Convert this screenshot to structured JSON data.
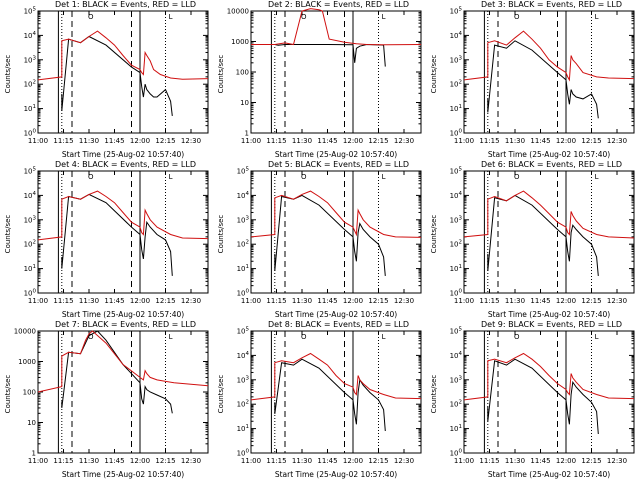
{
  "chart_data": [
    {
      "type": "line",
      "title": "Det 1: BLACK = Events, RED = LLD",
      "xlabel": "Start Time (25-Aug-02 10:57:40)",
      "ylabel": "Counts/sec",
      "x_ticks": [
        "11:00",
        "11:15",
        "11:30",
        "11:45",
        "12:00",
        "12:15",
        "12:30"
      ],
      "x_range_min": [
        0,
        100
      ],
      "y_scale": "log",
      "ylim": [
        1,
        100000
      ],
      "y_ticks": [
        "10^0",
        "10^1",
        "10^2",
        "10^3",
        "10^4",
        "10^5"
      ],
      "series": [
        {
          "name": "Events",
          "color": "#000000",
          "x": [
            14,
            14,
            18,
            25,
            30,
            40,
            55,
            60,
            61,
            62,
            63,
            64,
            66,
            68,
            70,
            75,
            78,
            79
          ],
          "y": [
            40,
            8,
            7000,
            5000,
            9000,
            4000,
            500,
            300,
            80,
            30,
            100,
            60,
            40,
            30,
            30,
            60,
            20,
            5
          ]
        },
        {
          "name": "LLD",
          "color": "#d01010",
          "x": [
            0,
            14,
            14,
            18,
            25,
            30,
            35,
            40,
            45,
            50,
            55,
            60,
            61,
            62,
            63,
            64,
            66,
            68,
            72,
            78,
            85,
            100
          ],
          "y": [
            150,
            200,
            6000,
            7000,
            5000,
            9000,
            15000,
            8000,
            4000,
            1500,
            600,
            400,
            300,
            250,
            2000,
            1500,
            900,
            400,
            250,
            180,
            160,
            170
          ]
        }
      ]
    },
    {
      "type": "line",
      "title": "Det 2: BLACK = Events, RED = LLD",
      "xlabel": "Start Time (25-Aug-02 10:57:40)",
      "ylabel": "Counts/sec",
      "x_ticks": [
        "11:00",
        "11:15",
        "11:30",
        "11:45",
        "12:00",
        "12:15",
        "12:30"
      ],
      "y_scale": "log",
      "ylim": [
        1,
        10000
      ],
      "y_ticks": [
        "1",
        "10",
        "100",
        "1000",
        "10000"
      ],
      "series": [
        {
          "name": "Events",
          "color": "#000000",
          "x": [
            0,
            14,
            16,
            20,
            25,
            35,
            45,
            60,
            61,
            62,
            64,
            68,
            72,
            78,
            79
          ],
          "y": [
            800,
            800,
            750,
            800,
            800,
            800,
            800,
            780,
            200,
            600,
            700,
            800,
            780,
            760,
            150
          ]
        },
        {
          "name": "LLD",
          "color": "#d01010",
          "x": [
            0,
            14,
            20,
            25,
            30,
            35,
            40,
            42,
            46,
            55,
            62,
            68,
            80,
            100
          ],
          "y": [
            800,
            800,
            900,
            800,
            10000,
            12000,
            11000,
            10000,
            1200,
            950,
            850,
            800,
            780,
            800
          ]
        }
      ]
    },
    {
      "type": "line",
      "title": "Det 3: BLACK = Events, RED = LLD",
      "xlabel": "Start Time (25-Aug-02 10:57:40)",
      "ylabel": "Counts/sec",
      "x_ticks": [
        "11:00",
        "11:15",
        "11:30",
        "11:45",
        "12:00",
        "12:15",
        "12:30"
      ],
      "y_scale": "log",
      "ylim": [
        1,
        100000
      ],
      "y_ticks": [
        "10^0",
        "10^1",
        "10^2",
        "10^3",
        "10^4",
        "10^5"
      ],
      "series": [
        {
          "name": "Events",
          "color": "#000000",
          "x": [
            14,
            14,
            18,
            25,
            30,
            40,
            55,
            60,
            61,
            62,
            63,
            64,
            66,
            70,
            75,
            78,
            79
          ],
          "y": [
            25,
            7,
            4000,
            3000,
            6000,
            2500,
            300,
            150,
            40,
            15,
            60,
            40,
            30,
            25,
            40,
            15,
            4
          ]
        },
        {
          "name": "LLD",
          "color": "#d01010",
          "x": [
            0,
            14,
            14,
            18,
            25,
            30,
            35,
            40,
            45,
            50,
            55,
            60,
            61,
            62,
            63,
            64,
            66,
            70,
            78,
            85,
            100
          ],
          "y": [
            150,
            200,
            5000,
            6000,
            4000,
            8000,
            15000,
            7000,
            3000,
            1000,
            500,
            300,
            200,
            150,
            1500,
            1000,
            700,
            300,
            200,
            180,
            170
          ]
        }
      ]
    },
    {
      "type": "line",
      "title": "Det 4: BLACK = Events, RED = LLD",
      "xlabel": "Start Time (25-Aug-02 10:57:40)",
      "ylabel": "Counts/sec",
      "x_ticks": [
        "11:00",
        "11:15",
        "11:30",
        "11:45",
        "12:00",
        "12:15",
        "12:30"
      ],
      "y_scale": "log",
      "ylim": [
        1,
        100000
      ],
      "y_ticks": [
        "10^0",
        "10^1",
        "10^2",
        "10^3",
        "10^4",
        "10^5"
      ],
      "series": [
        {
          "name": "Events",
          "color": "#000000",
          "x": [
            14,
            14,
            18,
            25,
            30,
            40,
            55,
            60,
            61,
            62,
            63,
            64,
            66,
            70,
            75,
            78,
            79
          ],
          "y": [
            30,
            10,
            9000,
            7000,
            11000,
            5000,
            500,
            250,
            60,
            25,
            200,
            800,
            500,
            250,
            150,
            50,
            5
          ]
        },
        {
          "name": "LLD",
          "color": "#d01010",
          "x": [
            0,
            14,
            14,
            18,
            25,
            30,
            35,
            40,
            45,
            50,
            55,
            60,
            61,
            62,
            63,
            64,
            66,
            70,
            78,
            85,
            100
          ],
          "y": [
            150,
            200,
            7000,
            9000,
            7000,
            11000,
            15000,
            9000,
            5000,
            2000,
            800,
            500,
            300,
            250,
            2500,
            1800,
            1000,
            500,
            250,
            180,
            170
          ]
        }
      ]
    },
    {
      "type": "line",
      "title": "Det 5: BLACK = Events, RED = LLD",
      "xlabel": "Start Time (25-Aug-02 10:57:40)",
      "ylabel": "Counts/sec",
      "x_ticks": [
        "11:00",
        "11:15",
        "11:30",
        "11:45",
        "12:00",
        "12:15",
        "12:30"
      ],
      "y_scale": "log",
      "ylim": [
        1,
        100000
      ],
      "y_ticks": [
        "10^0",
        "10^1",
        "10^2",
        "10^3",
        "10^4",
        "10^5"
      ],
      "series": [
        {
          "name": "Events",
          "color": "#000000",
          "x": [
            14,
            14,
            18,
            25,
            30,
            40,
            55,
            60,
            61,
            62,
            63,
            64,
            66,
            70,
            75,
            78,
            79
          ],
          "y": [
            40,
            8,
            9000,
            7000,
            10000,
            4000,
            400,
            200,
            50,
            20,
            300,
            700,
            400,
            200,
            100,
            30,
            5
          ]
        },
        {
          "name": "LLD",
          "color": "#d01010",
          "x": [
            0,
            14,
            14,
            18,
            25,
            30,
            35,
            40,
            45,
            50,
            55,
            60,
            61,
            62,
            63,
            64,
            66,
            70,
            78,
            85,
            100
          ],
          "y": [
            200,
            250,
            8000,
            10000,
            7000,
            11000,
            15000,
            9000,
            5000,
            2000,
            800,
            500,
            350,
            250,
            2500,
            1800,
            1000,
            500,
            250,
            200,
            190
          ]
        }
      ]
    },
    {
      "type": "line",
      "title": "Det 6: BLACK = Events, RED = LLD",
      "xlabel": "Start Time (25-Aug-02 10:57:40)",
      "ylabel": "Counts/sec",
      "x_ticks": [
        "11:00",
        "11:15",
        "11:30",
        "11:45",
        "12:00",
        "12:15",
        "12:30"
      ],
      "y_scale": "log",
      "ylim": [
        1,
        100000
      ],
      "y_ticks": [
        "10^0",
        "10^1",
        "10^2",
        "10^3",
        "10^4",
        "10^5"
      ],
      "series": [
        {
          "name": "Events",
          "color": "#000000",
          "x": [
            14,
            14,
            18,
            25,
            30,
            40,
            55,
            60,
            61,
            62,
            63,
            64,
            66,
            70,
            75,
            78,
            79
          ],
          "y": [
            40,
            8,
            8000,
            6000,
            10000,
            4000,
            400,
            200,
            50,
            20,
            300,
            600,
            400,
            200,
            100,
            30,
            5
          ]
        },
        {
          "name": "LLD",
          "color": "#d01010",
          "x": [
            0,
            14,
            14,
            18,
            25,
            30,
            35,
            40,
            45,
            50,
            55,
            60,
            61,
            62,
            63,
            64,
            66,
            70,
            78,
            85,
            100
          ],
          "y": [
            200,
            250,
            7000,
            9000,
            6000,
            10000,
            15000,
            8000,
            4000,
            1800,
            800,
            500,
            300,
            250,
            2200,
            1500,
            900,
            450,
            250,
            200,
            180
          ]
        }
      ]
    },
    {
      "type": "line",
      "title": "Det 7: BLACK = Events, RED = LLD",
      "xlabel": "Start Time (25-Aug-02 10:57:40)",
      "ylabel": "Counts/sec",
      "x_ticks": [
        "11:00",
        "11:15",
        "11:30",
        "11:45",
        "12:00",
        "12:15",
        "12:30"
      ],
      "y_scale": "log",
      "ylim": [
        1,
        10000
      ],
      "y_ticks": [
        "1",
        "10",
        "100",
        "1000",
        "10000"
      ],
      "series": [
        {
          "name": "Events",
          "color": "#000000",
          "x": [
            14,
            14,
            18,
            25,
            30,
            35,
            40,
            50,
            60,
            61,
            62,
            63,
            64,
            66,
            70,
            75,
            78,
            79
          ],
          "y": [
            50,
            30,
            2000,
            1800,
            7000,
            10000,
            5000,
            800,
            200,
            60,
            40,
            150,
            120,
            100,
            80,
            60,
            40,
            20
          ]
        },
        {
          "name": "LLD",
          "color": "#d01010",
          "x": [
            0,
            14,
            14,
            18,
            25,
            28,
            30,
            32,
            40,
            50,
            60,
            62,
            63,
            64,
            66,
            70,
            80,
            90,
            100
          ],
          "y": [
            100,
            150,
            1500,
            2000,
            1800,
            5000,
            8000,
            10000,
            4000,
            800,
            300,
            250,
            500,
            400,
            300,
            250,
            200,
            180,
            160
          ]
        }
      ]
    },
    {
      "type": "line",
      "title": "Det 8: BLACK = Events, RED = LLD",
      "xlabel": "Start Time (25-Aug-02 10:57:40)",
      "ylabel": "Counts/sec",
      "x_ticks": [
        "11:00",
        "11:15",
        "11:30",
        "11:45",
        "12:00",
        "12:15",
        "12:30"
      ],
      "y_scale": "log",
      "ylim": [
        1,
        100000
      ],
      "y_ticks": [
        "10^0",
        "10^1",
        "10^2",
        "10^3",
        "10^4",
        "10^5"
      ],
      "series": [
        {
          "name": "Events",
          "color": "#000000",
          "x": [
            14,
            14,
            18,
            25,
            30,
            40,
            55,
            60,
            61,
            62,
            63,
            64,
            66,
            70,
            75,
            78,
            79
          ],
          "y": [
            120,
            40,
            5000,
            4000,
            7000,
            3000,
            300,
            150,
            40,
            15,
            300,
            1000,
            600,
            300,
            150,
            60,
            8
          ]
        },
        {
          "name": "LLD",
          "color": "#d01010",
          "x": [
            0,
            14,
            14,
            18,
            25,
            30,
            35,
            40,
            45,
            50,
            55,
            60,
            61,
            62,
            63,
            64,
            66,
            70,
            78,
            85,
            100
          ],
          "y": [
            150,
            200,
            5000,
            6000,
            5000,
            8000,
            12000,
            7000,
            4000,
            1500,
            700,
            500,
            300,
            250,
            1500,
            1000,
            700,
            400,
            250,
            180,
            170
          ]
        }
      ]
    },
    {
      "type": "line",
      "title": "Det 9: BLACK = Events, RED = LLD",
      "xlabel": "Start Time (25-Aug-02 10:57:40)",
      "ylabel": "Counts/sec",
      "x_ticks": [
        "11:00",
        "11:15",
        "11:30",
        "11:45",
        "12:00",
        "12:15",
        "12:30"
      ],
      "y_scale": "log",
      "ylim": [
        1,
        100000
      ],
      "y_ticks": [
        "10^0",
        "10^1",
        "10^2",
        "10^3",
        "10^4",
        "10^5"
      ],
      "series": [
        {
          "name": "Events",
          "color": "#000000",
          "x": [
            14,
            14,
            18,
            25,
            30,
            40,
            55,
            60,
            61,
            62,
            63,
            64,
            66,
            70,
            75,
            78,
            79
          ],
          "y": [
            80,
            20,
            6000,
            4000,
            7000,
            3000,
            300,
            150,
            40,
            15,
            250,
            800,
            500,
            250,
            120,
            50,
            6
          ]
        },
        {
          "name": "LLD",
          "color": "#d01010",
          "x": [
            0,
            14,
            14,
            18,
            25,
            30,
            35,
            40,
            45,
            50,
            55,
            60,
            61,
            62,
            63,
            64,
            66,
            70,
            78,
            85,
            100
          ],
          "y": [
            150,
            200,
            6000,
            7000,
            5000,
            8000,
            12000,
            7000,
            3500,
            1500,
            700,
            400,
            300,
            250,
            1800,
            1200,
            800,
            400,
            250,
            180,
            170
          ]
        }
      ]
    }
  ]
}
